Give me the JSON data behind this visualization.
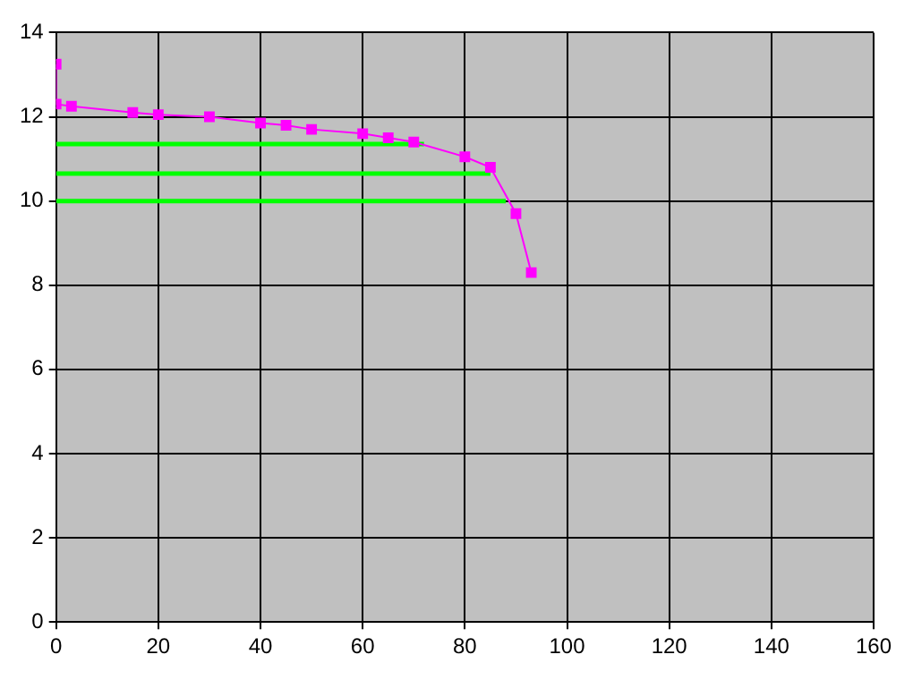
{
  "chart_data": {
    "type": "line",
    "xlim": [
      0,
      160
    ],
    "xticks": [
      0,
      20,
      40,
      60,
      80,
      100,
      120,
      140,
      160
    ],
    "ylim": [
      0,
      14
    ],
    "yticks": [
      0,
      2,
      4,
      6,
      8,
      10,
      12,
      14
    ],
    "grid": true,
    "legend": false,
    "series": [
      {
        "color": "#ff00ff",
        "marker": "square",
        "x": [
          0,
          0,
          3,
          15,
          20,
          30,
          40,
          45,
          50,
          60,
          65,
          70,
          80,
          85,
          90,
          93
        ],
        "values": [
          13.25,
          12.3,
          12.25,
          12.1,
          12.05,
          12.0,
          11.85,
          11.8,
          11.7,
          11.6,
          11.5,
          11.4,
          11.05,
          10.8,
          9.7,
          8.3
        ]
      },
      {
        "color": "#00ff00",
        "marker": "none",
        "x": [
          0,
          72
        ],
        "values": [
          11.35,
          11.35
        ]
      },
      {
        "color": "#00ff00",
        "marker": "none",
        "x": [
          0,
          85
        ],
        "values": [
          10.65,
          10.65
        ]
      },
      {
        "color": "#00ff00",
        "marker": "none",
        "x": [
          0,
          88
        ],
        "values": [
          10,
          10
        ]
      }
    ]
  }
}
